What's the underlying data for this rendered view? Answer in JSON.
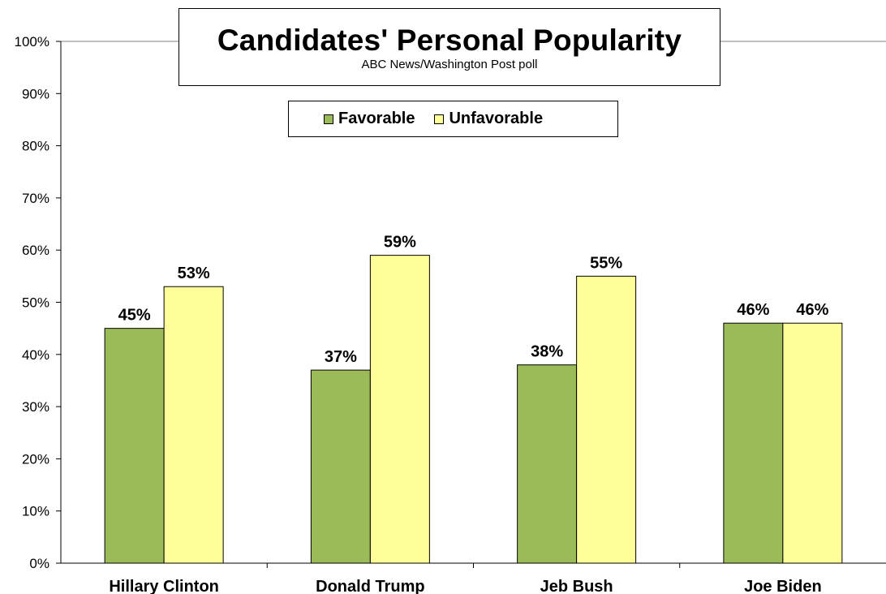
{
  "chart_data": {
    "type": "bar",
    "title": "Candidates' Personal Popularity",
    "subtitle": "ABC News/Washington  Post poll",
    "categories": [
      "Hillary Clinton",
      "Donald Trump",
      "Jeb Bush",
      "Joe Biden"
    ],
    "series": [
      {
        "name": "Favorable",
        "values": [
          45,
          37,
          38,
          46
        ],
        "labels": [
          "45%",
          "37%",
          "38%",
          "46%"
        ],
        "color": "#9bbb59"
      },
      {
        "name": "Unfavorable",
        "values": [
          53,
          59,
          55,
          46
        ],
        "labels": [
          "53%",
          "59%",
          "55%",
          "46%"
        ],
        "color": "#ffff99"
      }
    ],
    "ylim": [
      0,
      100
    ],
    "yticks": [
      "0%",
      "10%",
      "20%",
      "30%",
      "40%",
      "50%",
      "60%",
      "70%",
      "80%",
      "90%",
      "100%"
    ],
    "grid": false,
    "legend_position": "top-center"
  }
}
